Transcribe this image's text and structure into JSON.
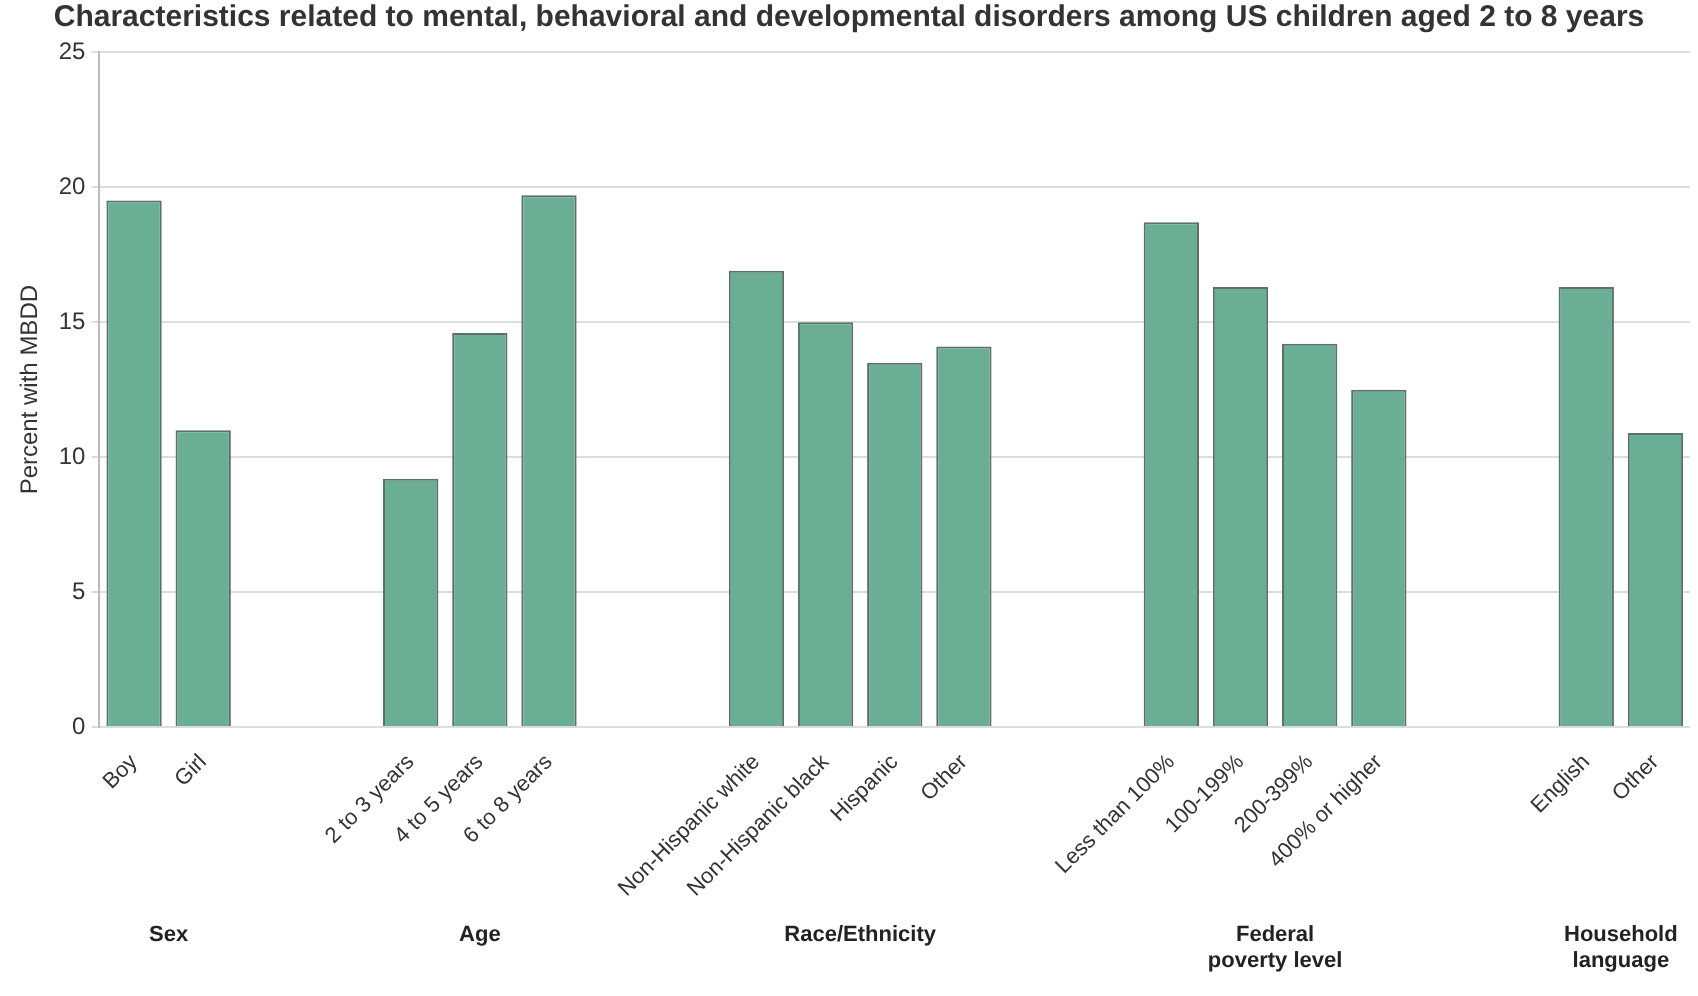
{
  "chart_data": {
    "type": "bar",
    "title": "Characteristics related to mental, behavioral and developmental disorders among US children aged 2 to 8 years",
    "ylabel": "Percent with MBDD",
    "categories": [
      "Boy",
      "Girl",
      null,
      null,
      "2 to 3 years",
      "4 to 5 years",
      "6 to 8 years",
      null,
      null,
      "Non-Hispanic white",
      "Non-Hispanic black",
      "Hispanic",
      "Other",
      null,
      null,
      "Less than 100%",
      "100-199%",
      "200-399%",
      "400% or higher",
      null,
      null,
      "English",
      "Other"
    ],
    "values": [
      19.5,
      11.0,
      null,
      null,
      9.2,
      14.6,
      19.7,
      null,
      null,
      16.9,
      15.0,
      13.5,
      14.1,
      null,
      null,
      18.7,
      16.3,
      14.2,
      12.5,
      null,
      null,
      16.3,
      10.9
    ],
    "color": "#6bae96",
    "ylim": [
      0,
      25
    ],
    "yticks": [
      0,
      5,
      10,
      15,
      20,
      25
    ],
    "grid": "y",
    "legend": false,
    "annotations": [
      "Sex",
      "Age",
      "Race/Ethnicity",
      "Federal poverty level",
      "Household language"
    ]
  }
}
